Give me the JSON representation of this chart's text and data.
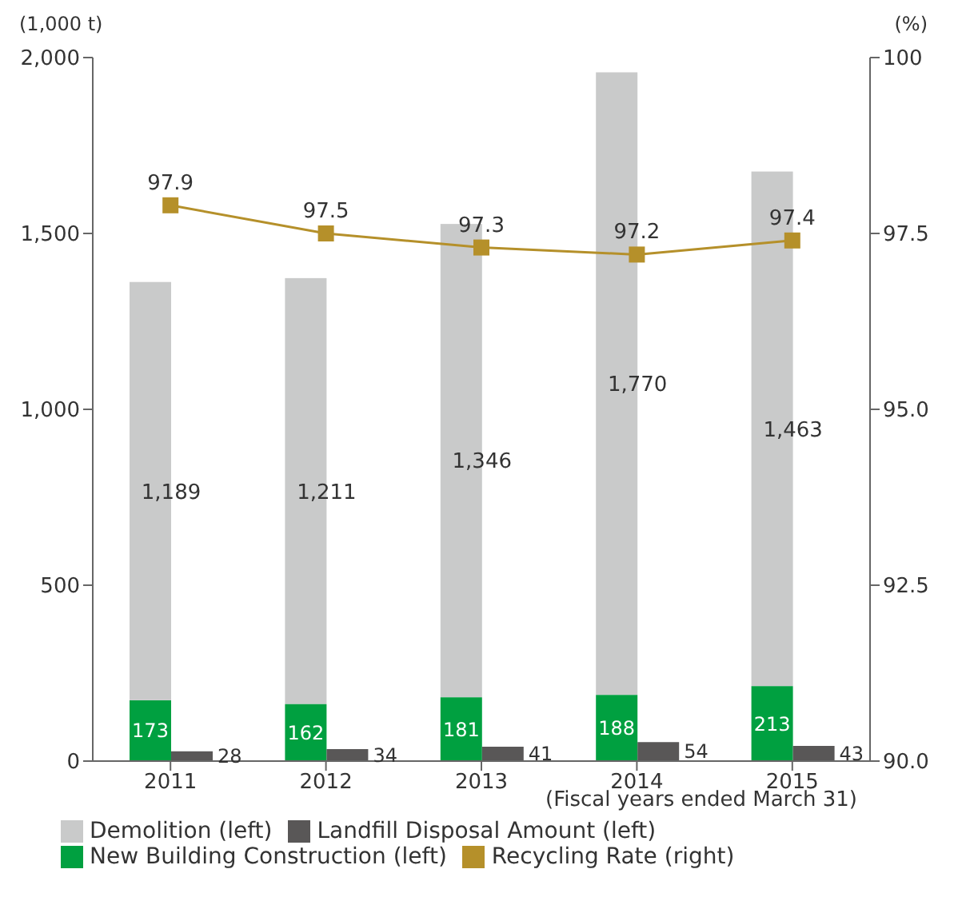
{
  "chart_data": {
    "type": "bar",
    "ylabel": "(1,000 t)",
    "y2label": "(%)",
    "xlabel": "(Fiscal years ended March 31)",
    "categories": [
      "2011",
      "2012",
      "2013",
      "2014",
      "2015"
    ],
    "series": [
      {
        "name": "Demolition (left)",
        "color": "#c9caca",
        "values": [
          1189,
          1211,
          1346,
          1770,
          1463
        ],
        "base": [
          173,
          162,
          181,
          188,
          213
        ],
        "value_labels": [
          "1,189",
          "1,211",
          "1,346",
          "1,770",
          "1,463"
        ]
      },
      {
        "name": "New Building Construction (left)",
        "color": "#00a040",
        "values": [
          173,
          162,
          181,
          188,
          213
        ],
        "value_labels": [
          "173",
          "162",
          "181",
          "188",
          "213"
        ]
      },
      {
        "name": "Landfill Disposal Amount (left)",
        "color": "#595757",
        "values": [
          28,
          34,
          41,
          54,
          43
        ],
        "value_labels": [
          "28",
          "34",
          "41",
          "54",
          "43"
        ]
      },
      {
        "name": "Recycling Rate (right)",
        "type": "line",
        "axis": "y2",
        "color": "#b5902a",
        "values": [
          97.9,
          97.5,
          97.3,
          97.2,
          97.4
        ],
        "marker": "square",
        "value_labels": [
          "97.9",
          "97.5",
          "97.3",
          "97.2",
          "97.4"
        ]
      }
    ],
    "ylim": [
      0,
      2000
    ],
    "yticks": [
      0,
      500,
      {
        "value": 1000,
        "label": "1,000"
      },
      {
        "value": 1500,
        "label": "1,500"
      },
      {
        "value": 2000,
        "label": "2,000"
      }
    ],
    "y2lim": [
      90,
      100
    ],
    "y2ticks": [
      {
        "value": 90,
        "label": "90.0"
      },
      92.5,
      {
        "value": 95,
        "label": "95.0"
      },
      97.5,
      100
    ],
    "legend": "bottom"
  }
}
